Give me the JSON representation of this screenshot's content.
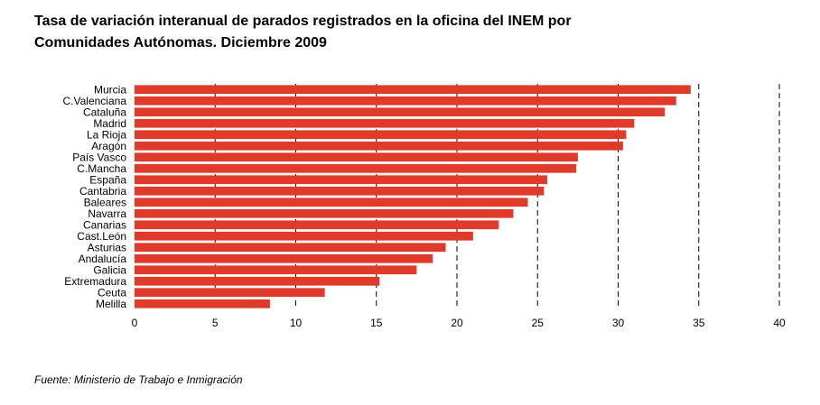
{
  "title_line1": "Tasa de variación interanual de parados registrados en la oficina del INEM por",
  "title_line2": "Comunidades Autónomas. Diciembre 2009",
  "source": "Fuente: Ministerio de Trabajo e Inmigración",
  "colors": {
    "bar": "#e03a2a",
    "gridline": "#000000",
    "text": "#000000"
  },
  "chart_data": {
    "type": "bar",
    "orientation": "horizontal",
    "categories": [
      "Murcia",
      "C.Valenciana",
      "Cataluña",
      "Madrid",
      "La Rioja",
      "Aragón",
      "País Vasco",
      "C.Mancha",
      "España",
      "Cantabria",
      "Baleares",
      "Navarra",
      "Canarias",
      "Cast.León",
      "Asturias",
      "Andalucía",
      "Galicia",
      "Extremadura",
      "Ceuta",
      "Melilla"
    ],
    "values": [
      34.5,
      33.6,
      32.9,
      31.0,
      30.5,
      30.3,
      27.5,
      27.4,
      25.6,
      25.4,
      24.4,
      23.5,
      22.6,
      21.0,
      19.3,
      18.5,
      17.5,
      15.2,
      11.8,
      8.4
    ],
    "xlim": [
      0,
      40
    ],
    "xticks": [
      0,
      5,
      10,
      15,
      20,
      25,
      30,
      35,
      40
    ],
    "grid": "vertical dashed",
    "xlabel": "",
    "ylabel": ""
  }
}
